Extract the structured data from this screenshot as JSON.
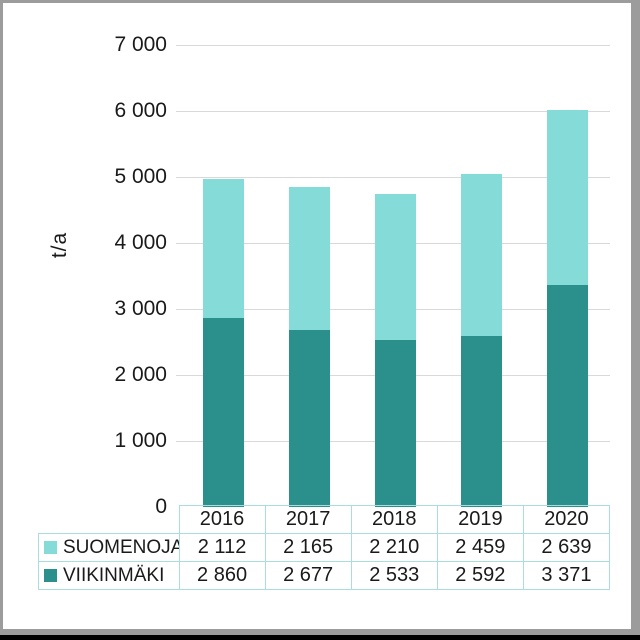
{
  "frame": {
    "background": "#FFFFFF",
    "border_color": "#9C9C9C",
    "bottom_bar_color": "#000000"
  },
  "chart_data": {
    "type": "bar",
    "stacked": true,
    "title": "",
    "ylabel": "t/a",
    "xlabel": "",
    "categories": [
      "2016",
      "2017",
      "2018",
      "2019",
      "2020"
    ],
    "series": [
      {
        "name": "SUOMENOJA",
        "color": "#85DBD8",
        "values": [
          2112,
          2165,
          2210,
          2459,
          2639
        ]
      },
      {
        "name": "VIIKINMÄKI",
        "color": "#2B8F8B",
        "values": [
          2860,
          2677,
          2533,
          2592,
          3371
        ]
      }
    ],
    "totals": [
      4972,
      4842,
      4743,
      5051,
      6010
    ],
    "ylim": [
      0,
      7000
    ],
    "ytick_step": 1000,
    "ytick_labels": [
      "0",
      "1 000",
      "2 000",
      "3 000",
      "4 000",
      "5 000",
      "6 000",
      "7 000"
    ],
    "grid": true,
    "gridline_color": "#D9D9D9",
    "legend_position": "table-below",
    "table": {
      "border_color": "#A9DEE1",
      "rows": [
        {
          "label": "SUOMENOJA",
          "swatch_color": "#85DBD8",
          "values": [
            "2 112",
            "2 165",
            "2 210",
            "2 459",
            "2 639"
          ]
        },
        {
          "label": "VIIKINMÄKI",
          "swatch_color": "#2B8F8B",
          "values": [
            "2 860",
            "2 677",
            "2 533",
            "2 592",
            "3 371"
          ]
        }
      ]
    }
  }
}
